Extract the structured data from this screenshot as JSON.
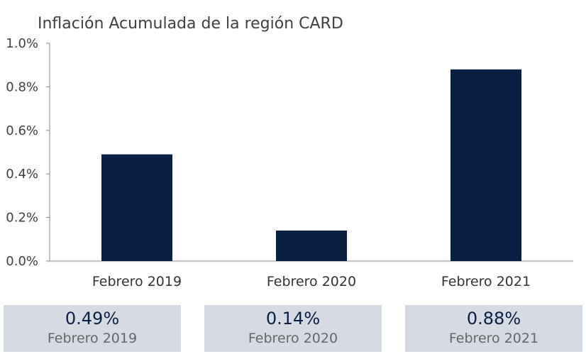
{
  "chart_data": {
    "type": "bar",
    "title": "Inflación Acumulada de la región CARD",
    "categories": [
      "Febrero 2019",
      "Febrero 2020",
      "Febrero 2021"
    ],
    "values": [
      0.49,
      0.14,
      0.88
    ],
    "ylim": [
      0,
      1.0
    ],
    "yticks": [
      "0.0%",
      "0.2%",
      "0.4%",
      "0.6%",
      "0.8%",
      "1.0%"
    ],
    "xlabel": "",
    "ylabel": "",
    "grid": false,
    "bar_color": "#0a1f44"
  },
  "cards": [
    {
      "value": "0.49%",
      "label": "Febrero 2019"
    },
    {
      "value": "0.14%",
      "label": "Febrero 2020"
    },
    {
      "value": "0.88%",
      "label": "Febrero 2021"
    }
  ],
  "colors": {
    "card_bg": "#d6dbe3",
    "card_value": "#0a1f44",
    "axis": "#888888"
  }
}
